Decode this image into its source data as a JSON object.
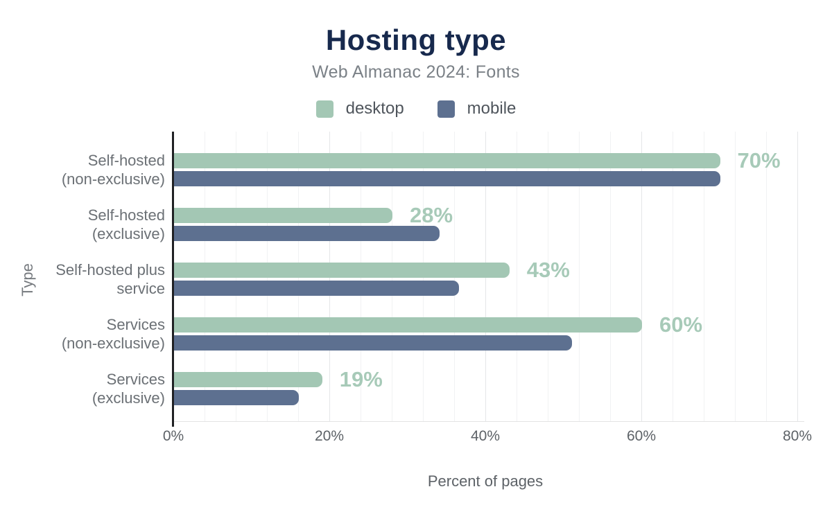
{
  "title": "Hosting type",
  "subtitle": "Web Almanac 2024: Fonts",
  "legend": {
    "items": [
      {
        "label": "desktop",
        "color": "#a3c7b4"
      },
      {
        "label": "mobile",
        "color": "#5d7090"
      }
    ]
  },
  "chart_data": {
    "type": "bar",
    "orientation": "horizontal",
    "title": "Hosting type",
    "subtitle": "Web Almanac 2024: Fonts",
    "xlabel": "Percent of pages",
    "ylabel": "Type",
    "xlim": [
      0,
      80
    ],
    "xticks": {
      "labels": [
        "0%",
        "20%",
        "40%",
        "60%",
        "80%"
      ],
      "values": [
        0,
        20,
        40,
        60,
        80
      ]
    },
    "grid": {
      "minor_step_pct": 4,
      "major_step_pct": 20,
      "vertical": true
    },
    "legend_position": "top",
    "categories": [
      "Self-hosted (non-exclusive)",
      "Self-hosted (exclusive)",
      "Self-hosted plus service",
      "Services (non-exclusive)",
      "Services (exclusive)"
    ],
    "category_label_lines": [
      [
        "Self-hosted",
        "(non-exclusive)"
      ],
      [
        "Self-hosted",
        "(exclusive)"
      ],
      [
        "Self-hosted plus",
        "service"
      ],
      [
        "Services",
        "(non-exclusive)"
      ],
      [
        "Services",
        "(exclusive)"
      ]
    ],
    "series": [
      {
        "name": "desktop",
        "color": "#a3c7b4",
        "values": [
          70,
          28,
          43,
          60,
          19
        ],
        "value_labels": [
          "70%",
          "28%",
          "43%",
          "60%",
          "19%"
        ]
      },
      {
        "name": "mobile",
        "color": "#5d7090",
        "values": [
          70,
          34,
          36.5,
          51,
          16
        ],
        "value_labels": []
      }
    ]
  },
  "colors": {
    "background": "#ffffff",
    "title": "#17294d",
    "subtitle": "#7b8187",
    "legend_text": "#4f555c",
    "category_label": "#6b7075",
    "tick_label": "#5d6267",
    "axis_title": "#75797e",
    "value_label": "#a7cab8",
    "axis_line": "#202124",
    "baseline": "#e3e3e3",
    "grid_minor": "#f1f2f3",
    "grid_major": "#e4e6e8"
  }
}
